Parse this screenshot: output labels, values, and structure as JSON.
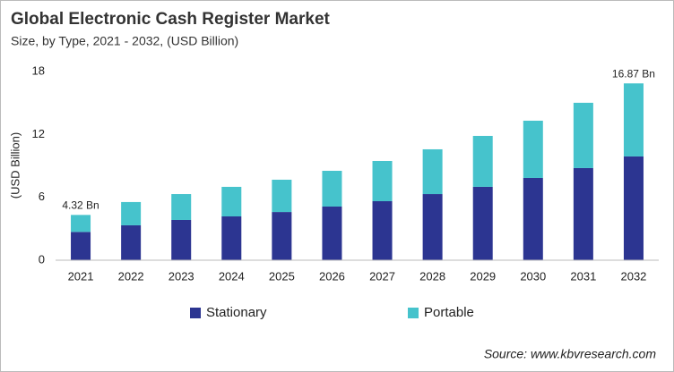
{
  "chart_data": {
    "type": "stacked-bar",
    "title": "Global Electronic Cash Register Market",
    "subtitle": "Size, by Type, 2021 - 2032, (USD Billion)",
    "y_label": "(USD Billion)",
    "source": "Source: www.kbvresearch.com",
    "categories": [
      "2021",
      "2022",
      "2023",
      "2024",
      "2025",
      "2026",
      "2027",
      "2028",
      "2029",
      "2030",
      "2031",
      "2032"
    ],
    "series": [
      {
        "name": "Stationary",
        "color": "#2c3591",
        "values": [
          2.7,
          3.33,
          3.84,
          4.18,
          4.6,
          5.12,
          5.63,
          6.31,
          7.0,
          7.85,
          8.79,
          9.9
        ]
      },
      {
        "name": "Portable",
        "color": "#46c3cc",
        "values": [
          1.62,
          2.22,
          2.47,
          2.82,
          3.08,
          3.41,
          3.84,
          4.27,
          4.86,
          5.46,
          6.23,
          6.97
        ]
      }
    ],
    "annotations": [
      {
        "category": "2021",
        "value": 4.32,
        "label": "4.32 Bn"
      },
      {
        "category": "2032",
        "value": 16.87,
        "label": "16.87 Bn"
      }
    ],
    "ylim": [
      0,
      18
    ],
    "yticks": [
      0,
      6,
      12,
      18
    ],
    "grid": false,
    "legend": "bottom"
  }
}
